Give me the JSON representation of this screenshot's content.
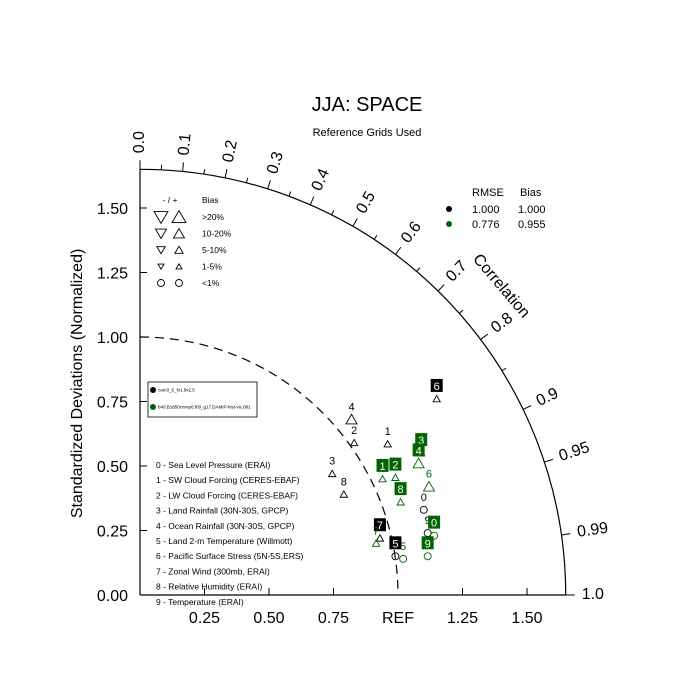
{
  "chart_data": {
    "type": "scatter",
    "title": "JJA: SPACE",
    "subtitle": "Reference Grids Used",
    "ylabel": "Standardized Deviations (Normalized)",
    "correlation_label": "Correlation",
    "ref_label": "REF",
    "xlim": [
      0,
      1.65
    ],
    "ylim": [
      0,
      1.65
    ],
    "y_ticks": [
      "0.00",
      "0.25",
      "0.50",
      "0.75",
      "1.00",
      "1.25",
      "1.50"
    ],
    "x_ticks": [
      "0.25",
      "0.50",
      "0.75",
      "1.25",
      "1.50"
    ],
    "corr_ticks": [
      "0.0",
      "0.1",
      "0.2",
      "0.3",
      "0.4",
      "0.5",
      "0.6",
      "0.7",
      "0.8",
      "0.9",
      "0.95",
      "0.99",
      "1.0"
    ],
    "bias_legend": {
      "header_sign": "- / +",
      "header_bias": "Bias",
      "rows": [
        ">20%",
        "10-20%",
        "5-10%",
        "1-5%",
        "<1%"
      ]
    },
    "stats_legend": {
      "header_rmse": "RMSE",
      "header_bias": "Bias",
      "rows": [
        {
          "rmse": "1.000",
          "bias": "1.000",
          "color": "#000000"
        },
        {
          "rmse": "0.776",
          "bias": "0.955",
          "color": "#006400"
        }
      ]
    },
    "case_legend": [
      {
        "name": "cam3_5_fv1.9x2.5",
        "color": "#000000"
      },
      {
        "name": "b40.B1850cnrnp6.f09_g17.DAMIP-hist-vic.001",
        "color": "#006400"
      }
    ],
    "variables": [
      "0 - Sea Level Pressure (ERAI)",
      "1 - SW Cloud Forcing (CERES-EBAF)",
      "2 - LW Cloud Forcing (CERES-EBAF)",
      "3 - Land Rainfall (30N-30S, GPCP)",
      "4 - Ocean Rainfall (30N-30S, GPCP)",
      "5 - Land 2-m Temperature (Willmott)",
      "6 - Pacific Surface Stress (5N-5S,ERS)",
      "7 - Zonal Wind (300mb, ERAI)",
      "8 - Relative Humidity (ERAI)",
      "9 - Temperature (ERAI)"
    ],
    "series": [
      {
        "name": "cam3_5_fv1.9x2.5",
        "color": "#000000",
        "points": [
          {
            "label": "0",
            "x": 1.1,
            "y": 0.33,
            "marker": "circle",
            "boxed": false
          },
          {
            "label": "1",
            "x": 0.96,
            "y": 0.585,
            "marker": "tri-up",
            "boxed": false
          },
          {
            "label": "2",
            "x": 0.83,
            "y": 0.59,
            "marker": "tri-up",
            "boxed": false
          },
          {
            "label": "3",
            "x": 0.745,
            "y": 0.47,
            "marker": "tri-up",
            "boxed": false
          },
          {
            "label": "4",
            "x": 0.82,
            "y": 0.68,
            "marker": "tri-up-big",
            "boxed": false
          },
          {
            "label": "5",
            "x": 0.99,
            "y": 0.15,
            "marker": "circle",
            "boxed": true
          },
          {
            "label": "6",
            "x": 1.15,
            "y": 0.76,
            "marker": "tri-up",
            "boxed": true
          },
          {
            "label": "7",
            "x": 0.93,
            "y": 0.22,
            "marker": "tri-up",
            "boxed": true
          },
          {
            "label": "8",
            "x": 0.79,
            "y": 0.39,
            "marker": "tri-up",
            "boxed": false
          },
          {
            "label": "9",
            "x": 1.115,
            "y": 0.24,
            "marker": "circle",
            "boxed": false
          }
        ]
      },
      {
        "name": "b40.B1850cnrnp6.f09_g17.DAMIP-hist-vic.001",
        "color": "#006400",
        "points": [
          {
            "label": "0",
            "x": 1.14,
            "y": 0.23,
            "marker": "circle",
            "boxed": true
          },
          {
            "label": "1",
            "x": 0.94,
            "y": 0.45,
            "marker": "tri-up",
            "boxed": true
          },
          {
            "label": "2",
            "x": 0.99,
            "y": 0.455,
            "marker": "tri-up",
            "boxed": true
          },
          {
            "label": "3",
            "x": 1.09,
            "y": 0.55,
            "marker": "tri-up",
            "boxed": true
          },
          {
            "label": "4",
            "x": 1.08,
            "y": 0.51,
            "marker": "tri-up-big",
            "boxed": true
          },
          {
            "label": "5",
            "x": 1.02,
            "y": 0.14,
            "marker": "circle",
            "boxed": false
          },
          {
            "label": "6",
            "x": 1.12,
            "y": 0.42,
            "marker": "tri-up-big",
            "boxed": false
          },
          {
            "label": "7",
            "x": 0.915,
            "y": 0.2,
            "marker": "tri-up",
            "boxed": false
          },
          {
            "label": "8",
            "x": 1.01,
            "y": 0.36,
            "marker": "tri-up",
            "boxed": true
          },
          {
            "label": "9",
            "x": 1.115,
            "y": 0.15,
            "marker": "circle",
            "boxed": true
          }
        ]
      }
    ]
  }
}
